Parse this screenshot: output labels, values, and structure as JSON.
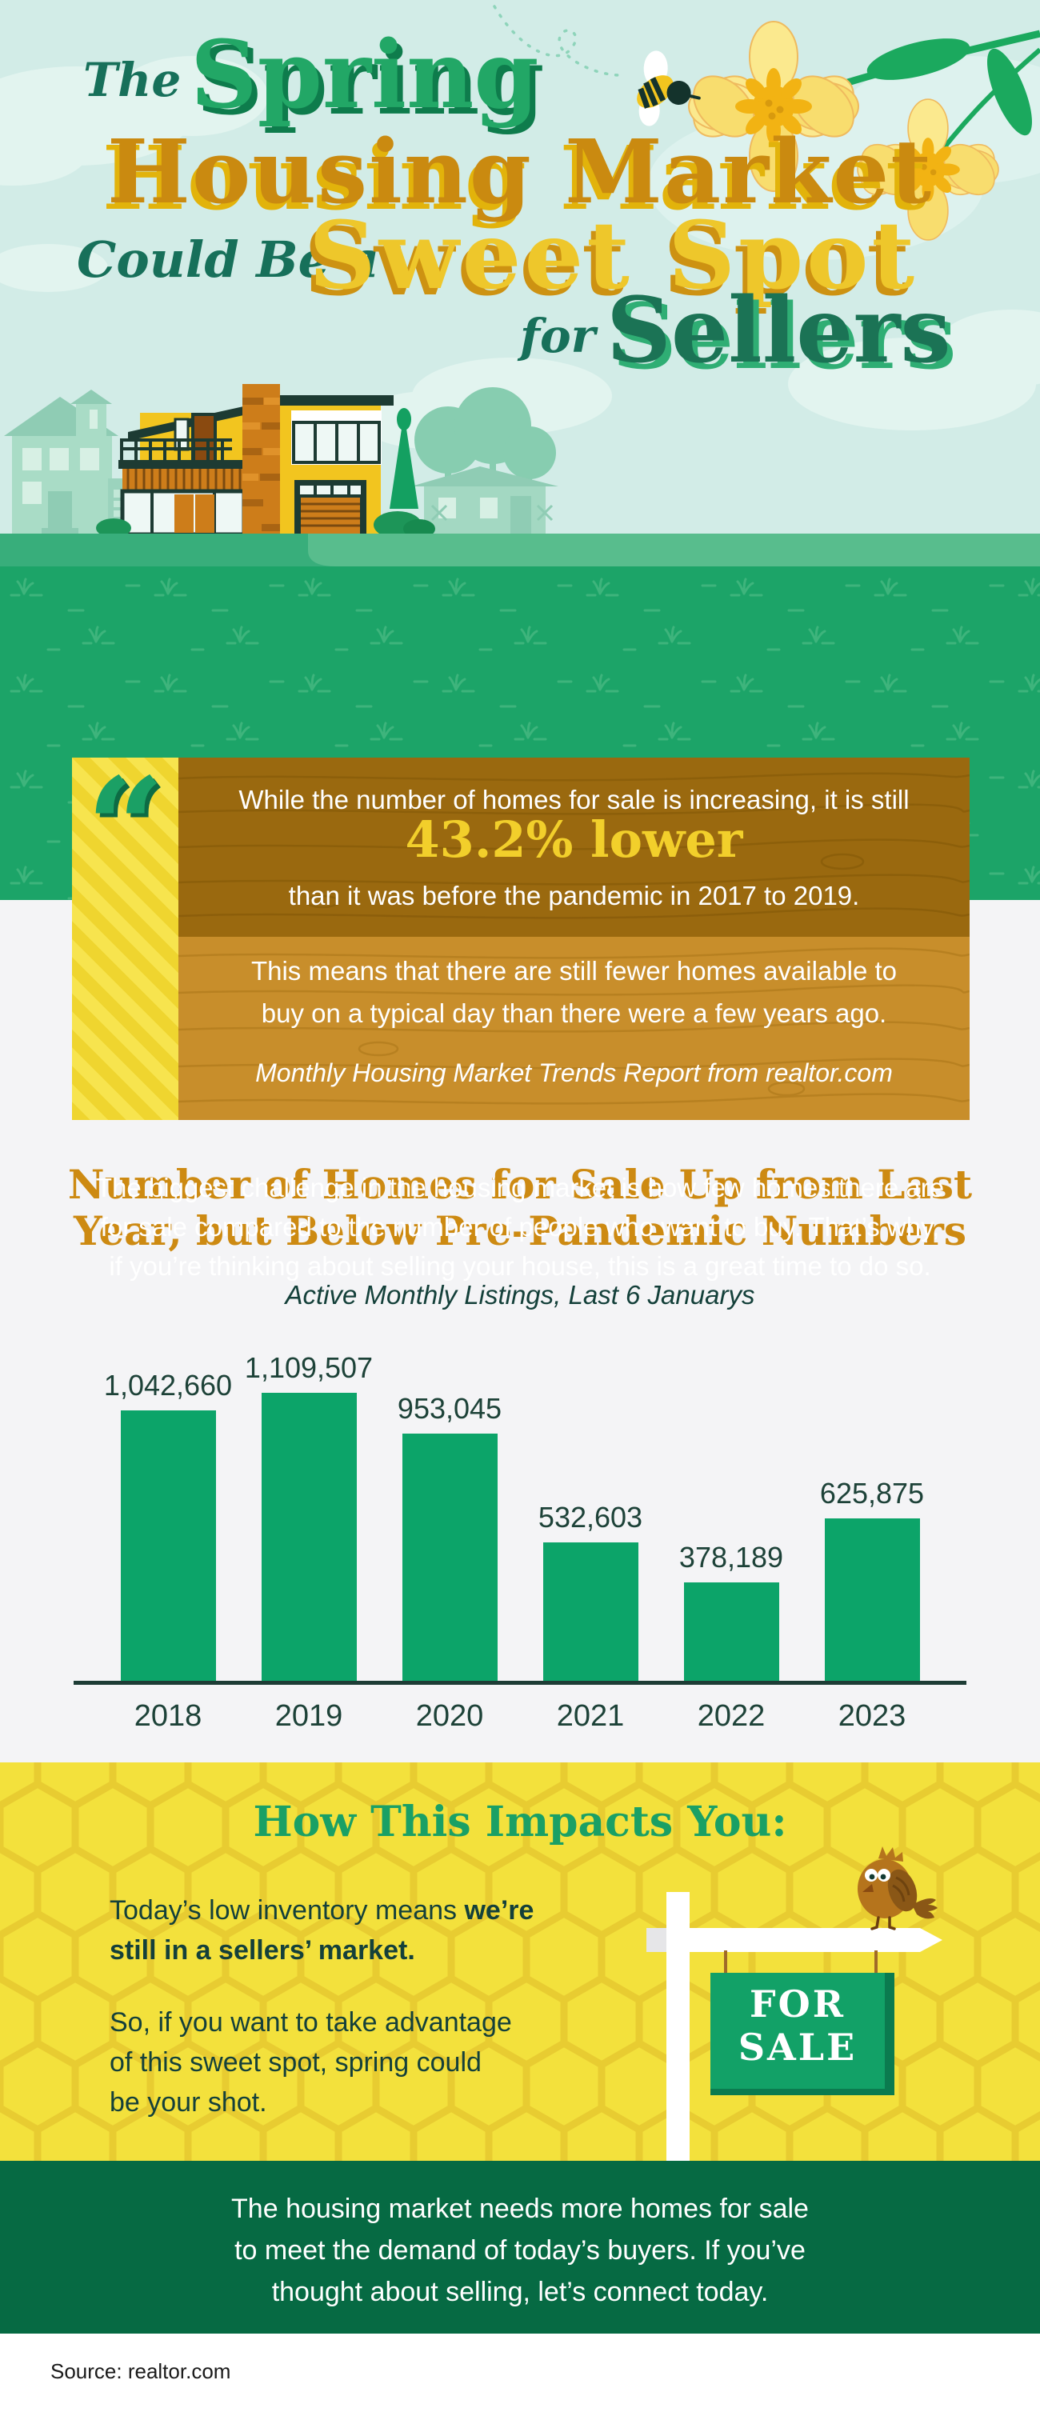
{
  "header": {
    "title": {
      "the": "The",
      "spring": "Spring",
      "housing_market": "Housing Market",
      "could_be_a": "Could Be a",
      "sweet_spot": "Sweet Spot",
      "for": "for",
      "sellers": "Sellers"
    }
  },
  "intro": {
    "lines": [
      "The biggest challenge in the housing market is how few homes there are",
      "for sale compared to the number of people who want to buy. That’s why,",
      "if you’re thinking about selling your house, this is a great time to do so."
    ]
  },
  "quote": {
    "mark": "“",
    "line1": "While the number of homes for sale is increasing, it is still",
    "highlight": "43.2% lower",
    "line2": "than it was before the pandemic in 2017 to 2019.",
    "body_lines": [
      "This means that there are still fewer homes available to",
      "buy on a typical day than there were a few years ago."
    ],
    "attribution": "Monthly Housing Market Trends Report from realtor.com"
  },
  "chart": {
    "title_lines": [
      "Number of Homes for Sale Up from Last",
      "Year, but Below Pre-Pandemic Numbers"
    ],
    "subtitle": "Active Monthly Listings, Last 6 Januarys"
  },
  "chart_data": {
    "type": "bar",
    "title": "Number of Homes for Sale Up from Last Year, but Below Pre-Pandemic Numbers",
    "subtitle": "Active Monthly Listings, Last 6 Januarys",
    "categories": [
      "2018",
      "2019",
      "2020",
      "2021",
      "2022",
      "2023"
    ],
    "values": [
      1042660,
      1109507,
      953045,
      532603,
      378189,
      625875
    ],
    "value_labels": [
      "1,042,660",
      "1,109,507",
      "953,045",
      "532,603",
      "378,189",
      "625,875"
    ],
    "ylim": [
      0,
      1109507
    ],
    "xlabel": "",
    "ylabel": "",
    "grid": false,
    "legend": false,
    "bar_color": "#0ca469",
    "axis_color": "#1d3c35",
    "label_color": "#1d4238"
  },
  "impact": {
    "title": "How This Impacts You:",
    "p1_prefix": "Today’s low inventory means",
    "p1_bold_inline": "we’re",
    "p1_bold_line": "still in a sellers’ market.",
    "p2_lines": [
      "So, if you want to take advantage",
      "of this sweet spot, spring could",
      "be your shot."
    ],
    "sign": {
      "line1": "FOR",
      "line2": "SALE"
    }
  },
  "outro": {
    "lines": [
      "The housing market needs more homes for sale",
      "to meet the demand of today’s buyers. If you’ve",
      "thought about selling, let’s connect today."
    ]
  },
  "footer": {
    "source": "Source: realtor.com"
  },
  "colors": {
    "sky": "#d2ece7",
    "cloud": "#e2f4ef",
    "grass_band": "#1ca468",
    "grass_tuft": "#3eb47c",
    "header_ground": "#38ae7b",
    "header_ground_light": "#58bd8d",
    "title_green": "#22a766",
    "title_green_shadow": "#0e7c4c",
    "title_dark_green": "#17705a",
    "title_orange": "#ca8a10",
    "title_orange_shadow": "#e2b30b",
    "title_yellow": "#eec72b",
    "title_yellow_shadow": "#cd9212",
    "sellers_shadow": "#2fae74",
    "quote_strip_yellow": "#efd52f",
    "quote_strip_stripe": "#f7e44e",
    "quote_mark_green": "#1ba065",
    "wood_dark": "#9a690f",
    "wood_light": "#c88e2b",
    "quote_highlight": "#f2cf2b",
    "page_bg": "#f4f4f6",
    "chart_title_orange": "#cd8a12",
    "text_dark_teal": "#14403a",
    "honey_yellow": "#f3e13c",
    "honey_line": "#e8cc31",
    "impact_title_green": "#1aa065",
    "sign_green": "#12a167",
    "sign_green_dark": "#0b7b4f",
    "string_brown": "#a06a28",
    "bird_brown": "#b5741c",
    "bird_wing": "#8a5716",
    "bottom_band_green": "#066a43"
  }
}
